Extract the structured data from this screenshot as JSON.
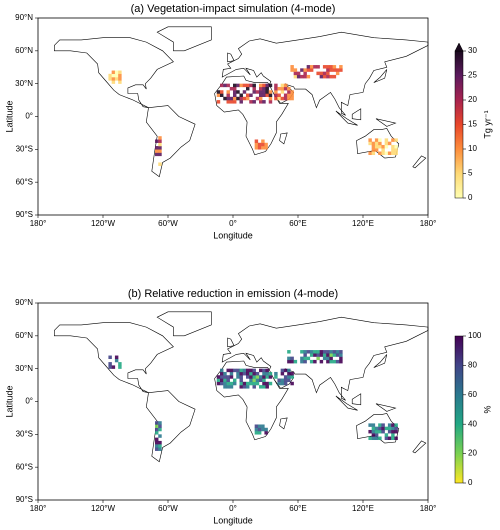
{
  "panels": [
    {
      "title": "(a) Vegetation-impact simulation (4-mode)",
      "xlabel": "Longitude",
      "ylabel": "Latitude",
      "xticks": [
        {
          "value": -180,
          "label": "180°"
        },
        {
          "value": -120,
          "label": "120°W"
        },
        {
          "value": -60,
          "label": "60°W"
        },
        {
          "value": 0,
          "label": "0°"
        },
        {
          "value": 60,
          "label": "60°E"
        },
        {
          "value": 120,
          "label": "120°E"
        },
        {
          "value": 180,
          "label": "180°"
        }
      ],
      "yticks": [
        {
          "value": 90,
          "label": "90°N"
        },
        {
          "value": 60,
          "label": "60°N"
        },
        {
          "value": 30,
          "label": "30°N"
        },
        {
          "value": 0,
          "label": "0°"
        },
        {
          "value": -30,
          "label": "30°S"
        },
        {
          "value": -60,
          "label": "60°S"
        },
        {
          "value": -90,
          "label": "90°S"
        }
      ],
      "colorbar": {
        "label": "Tg yr⁻¹",
        "lim": [
          0,
          30
        ],
        "ticks": [
          0,
          5,
          10,
          15,
          20,
          25,
          30
        ],
        "extend": "max",
        "colors": [
          "#ffffb2",
          "#fed976",
          "#fd8d3c",
          "#e8462a",
          "#a8234f",
          "#5c1a5e",
          "#1a0a1e"
        ]
      }
    },
    {
      "title": "(b) Relative reduction in emission (4-mode)",
      "xlabel": "Longitude",
      "ylabel": "Latitude",
      "xticks": [
        {
          "value": -180,
          "label": "180°"
        },
        {
          "value": -120,
          "label": "120°W"
        },
        {
          "value": -60,
          "label": "60°W"
        },
        {
          "value": 0,
          "label": "0°"
        },
        {
          "value": 60,
          "label": "60°E"
        },
        {
          "value": 120,
          "label": "120°E"
        },
        {
          "value": 180,
          "label": "180°"
        }
      ],
      "yticks": [
        {
          "value": 90,
          "label": "90°N"
        },
        {
          "value": 60,
          "label": "60°N"
        },
        {
          "value": 30,
          "label": "30°N"
        },
        {
          "value": 0,
          "label": "0°"
        },
        {
          "value": -30,
          "label": "30°S"
        },
        {
          "value": -60,
          "label": "60°S"
        },
        {
          "value": -90,
          "label": "90°S"
        }
      ],
      "colorbar": {
        "label": "%",
        "lim": [
          0,
          100
        ],
        "ticks": [
          0,
          20,
          40,
          60,
          80,
          100
        ],
        "extend": "none",
        "colors": [
          "#fde725",
          "#7ad151",
          "#22a884",
          "#2a788e",
          "#414487",
          "#440154"
        ]
      }
    }
  ]
}
